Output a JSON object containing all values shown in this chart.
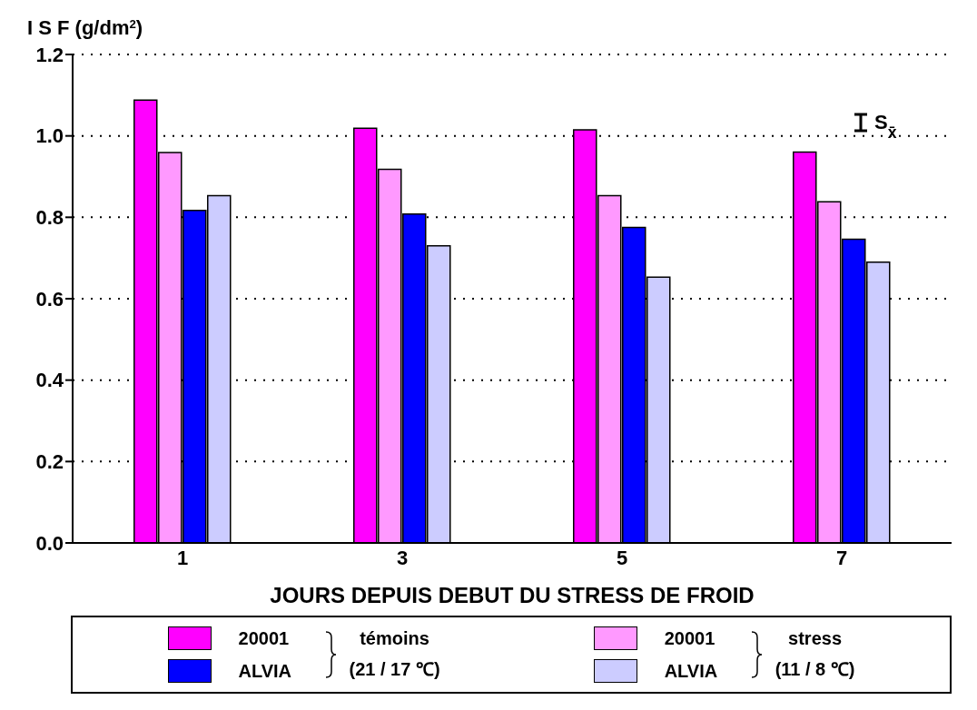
{
  "chart_data": {
    "type": "bar",
    "ylabel": "I S F  (g/dm$^{2}$)",
    "xlabel": "JOURS DEPUIS DEBUT DU STRESS DE FROID",
    "categories": [
      "1",
      "3",
      "5",
      "7"
    ],
    "series": [
      {
        "name": "20001",
        "color": "#ff00ff",
        "values": [
          1.088,
          1.019,
          1.015,
          0.96
        ]
      },
      {
        "name": "20001",
        "color": "#ff99ff",
        "values": [
          0.959,
          0.918,
          0.853,
          0.838
        ]
      },
      {
        "name": "ALVIA",
        "color": "#0000ff",
        "values": [
          0.817,
          0.808,
          0.775,
          0.746
        ]
      },
      {
        "name": "ALVIA",
        "color": "#ccccff",
        "values": [
          0.853,
          0.73,
          0.653,
          0.69
        ]
      }
    ],
    "ylim": [
      0,
      1.2
    ],
    "yticks": [
      {
        "value": 0,
        "label": "0.0"
      },
      {
        "value": 0.2,
        "label": "0.2"
      },
      {
        "value": 0.4,
        "label": "0.4"
      },
      {
        "value": 0.6,
        "label": "0.6"
      },
      {
        "value": 0.8,
        "label": "0.8"
      },
      {
        "value": 1,
        "label": "1.0"
      },
      {
        "value": 1.2,
        "label": "1.2"
      }
    ],
    "grid": "y",
    "legend": "bottom",
    "annotations": [
      "S$_{x̄}$",
      "témoins",
      "(21 / 17 ℃)",
      "stress",
      "(11 / 8 ℃)"
    ]
  }
}
